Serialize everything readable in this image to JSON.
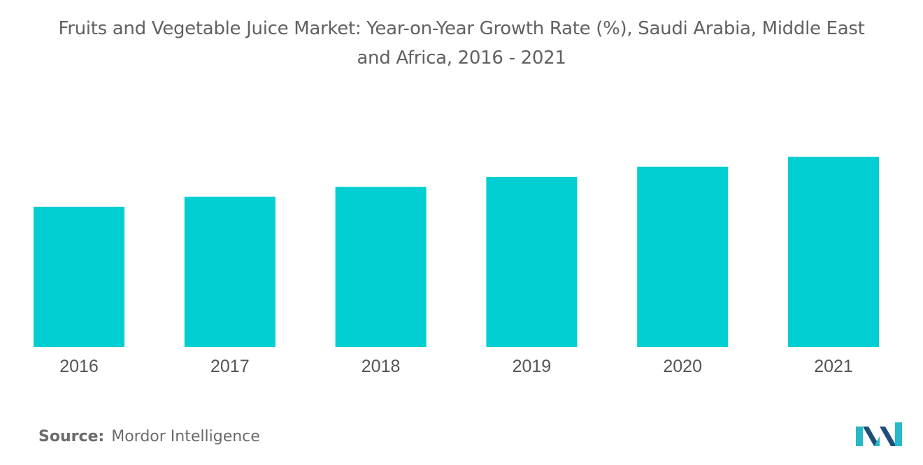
{
  "chart_data": {
    "type": "bar",
    "title": "Fruits and Vegetable Juice Market: Year-on-Year Growth Rate (%), Saudi Arabia, Middle East and Africa, 2016 - 2021",
    "categories": [
      "2016",
      "2017",
      "2018",
      "2019",
      "2020",
      "2021"
    ],
    "values": [
      7.0,
      7.5,
      8.0,
      8.5,
      9.0,
      9.5
    ],
    "xlabel": "",
    "ylabel": "",
    "ylim": [
      0,
      10
    ],
    "grid": false,
    "legend": "none",
    "bar_color": "#00CED1"
  },
  "footer": {
    "source_label": "Source:",
    "source_value": "Mordor Intelligence"
  },
  "colors": {
    "bar": "#00CED1",
    "title_text": "#616161",
    "axis_text": "#555555",
    "logo_dark": "#1f4e79",
    "logo_teal": "#26b9c9"
  },
  "logo_icon": "mordor-intelligence-logo-icon"
}
